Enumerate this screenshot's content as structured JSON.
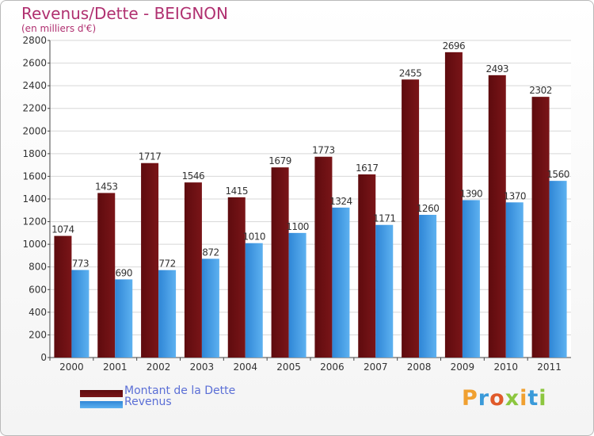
{
  "title": "Revenus/Dette - BEIGNON",
  "subtitle": "(en milliers d'€)",
  "colors": {
    "debt": "#7a1518",
    "revenue": "#3f9ae6",
    "grid": "#d7d7d7",
    "axis": "#444444",
    "title": "#b03070"
  },
  "chart_data": {
    "type": "bar",
    "title": "Revenus/Dette - BEIGNON",
    "ylabel": "(en milliers d'€)",
    "xlabel": "",
    "categories": [
      "2000",
      "2001",
      "2002",
      "2003",
      "2004",
      "2005",
      "2006",
      "2007",
      "2008",
      "2009",
      "2010",
      "2011"
    ],
    "series": [
      {
        "name": "Montant de la Dette",
        "values": [
          1074,
          1453,
          1717,
          1546,
          1415,
          1679,
          1773,
          1617,
          2455,
          2696,
          2493,
          2302
        ]
      },
      {
        "name": "Revenus",
        "values": [
          773,
          690,
          772,
          872,
          1010,
          1100,
          1324,
          1171,
          1260,
          1390,
          1370,
          1560
        ]
      }
    ],
    "ylim": [
      0,
      2800
    ],
    "yticks": [
      0,
      200,
      400,
      600,
      800,
      1000,
      1200,
      1400,
      1600,
      1800,
      2000,
      2200,
      2400,
      2600,
      2800
    ],
    "grid": true,
    "legend_position": "bottom-left"
  },
  "legend": {
    "debt_label": "Montant de la Dette",
    "revenue_label": "Revenus"
  },
  "logo": {
    "text": "Proxiti",
    "letter_colors": [
      "#f0a030",
      "#3a9ad9",
      "#e05a2a",
      "#8cc63f",
      "#f0a030",
      "#3a9ad9",
      "#8cc63f"
    ]
  }
}
